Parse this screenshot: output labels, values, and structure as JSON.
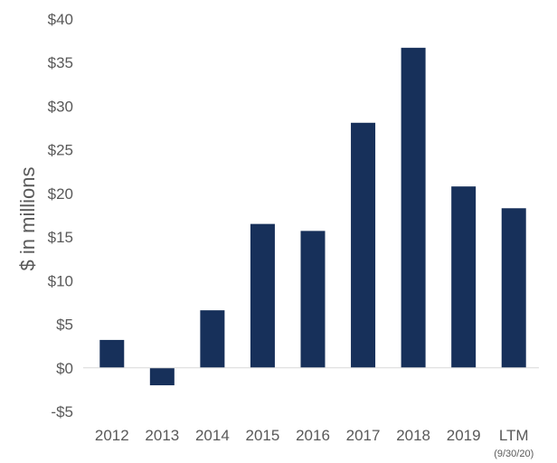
{
  "chart_data": {
    "type": "bar",
    "title": "",
    "xlabel": "",
    "ylabel": "$ in millions",
    "categories": [
      "2012",
      "2013",
      "2014",
      "2015",
      "2016",
      "2017",
      "2018",
      "2019",
      "LTM"
    ],
    "category_notes": {
      "LTM": "(9/30/20)"
    },
    "values": [
      3.2,
      -2.0,
      6.6,
      16.5,
      15.7,
      28.1,
      36.7,
      20.8,
      18.3
    ],
    "ylim": [
      -5,
      40
    ],
    "yticks": [
      -5,
      0,
      5,
      10,
      15,
      20,
      25,
      30,
      35,
      40
    ],
    "ytick_labels": [
      "-$5",
      "$0",
      "$5",
      "$10",
      "$15",
      "$20",
      "$25",
      "$30",
      "$35",
      "$40"
    ],
    "grid": false,
    "legend": "none",
    "bar_color": "#17305A",
    "axis_color": "#D9D9D9",
    "text_color": "#595959"
  }
}
